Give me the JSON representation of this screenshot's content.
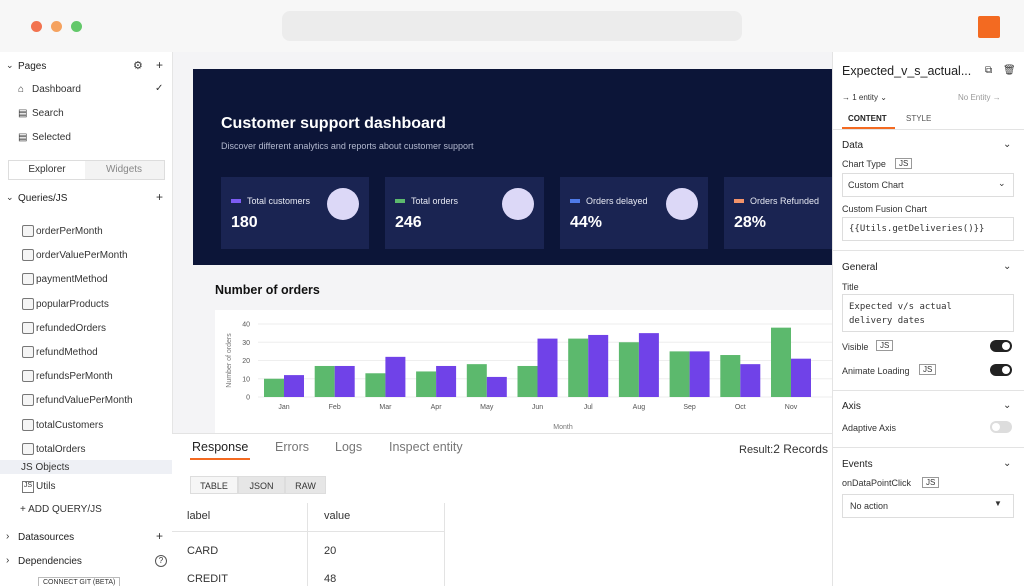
{
  "sidebar": {
    "pages_title": "Pages",
    "pages": [
      "Dashboard",
      "Search",
      "Selected"
    ],
    "tabs": [
      "Explorer",
      "Widgets"
    ],
    "queries_title": "Queries/JS",
    "queries": [
      "orderPerMonth",
      "orderValuePerMonth",
      "paymentMethod",
      "popularProducts",
      "refundedOrders",
      "refundMethod",
      "refundsPerMonth",
      "refundValuePerMonth",
      "totalCustomers",
      "totalOrders"
    ],
    "js_objects_title": "JS Objects",
    "js_objects": [
      "Utils"
    ],
    "add_query": "ADD QUERY/JS",
    "datasources": "Datasources",
    "dependencies": "Dependencies",
    "connect_git": "CONNECT GIT (BETA)"
  },
  "dashboard": {
    "title": "Customer support dashboard",
    "subtitle": "Discover different analytics and reports about customer support",
    "stats": [
      {
        "label": "Total customers",
        "value": "180"
      },
      {
        "label": "Total orders",
        "value": "246"
      },
      {
        "label": "Orders delayed",
        "value": "44%"
      },
      {
        "label": "Orders Refunded",
        "value": "28%"
      }
    ]
  },
  "chart_data": {
    "type": "bar",
    "title": "Number of orders",
    "y_label": "Number of orders",
    "x_label": "Month",
    "categories": [
      "Jan",
      "Feb",
      "Mar",
      "Apr",
      "May",
      "Jun",
      "Jul",
      "Aug",
      "Sep",
      "Oct",
      "Nov"
    ],
    "series": [
      {
        "color": "#5cb96d",
        "values": [
          10,
          17,
          13,
          14,
          18,
          17,
          32,
          30,
          25,
          23,
          38
        ]
      },
      {
        "color": "#7042e8",
        "values": [
          12,
          17,
          22,
          17,
          11,
          32,
          34,
          35,
          25,
          18,
          21
        ]
      }
    ],
    "ylim": [
      0,
      40
    ],
    "yticks": [
      0,
      10,
      20,
      30,
      40
    ],
    "grid": true
  },
  "response_panel": {
    "tabs": [
      "Response",
      "Errors",
      "Logs",
      "Inspect entity"
    ],
    "result_label": "Result:",
    "result_value": "2 Records",
    "view_tabs": [
      "TABLE",
      "JSON",
      "RAW"
    ],
    "table": {
      "headers": [
        "label",
        "value"
      ],
      "rows": [
        [
          "CARD",
          "20"
        ],
        [
          "CREDIT",
          "48"
        ]
      ]
    }
  },
  "property_pane": {
    "widget_name": "Expected_v_s_actual...",
    "entity": "1 entity",
    "no_entity": "No Entity",
    "tabs": [
      "CONTENT",
      "STYLE"
    ],
    "js": "JS",
    "data_section": "Data",
    "chart_type_label": "Chart Type",
    "chart_type_value": "Custom Chart",
    "fusion_label": "Custom Fusion Chart",
    "fusion_value": "{{Utils.getDeliveries()}}",
    "general_section": "General",
    "title_label": "Title",
    "title_value": "Expected v/s actual delivery dates",
    "visible_label": "Visible",
    "animate_label": "Animate Loading",
    "axis_section": "Axis",
    "adaptive_label": "Adaptive Axis",
    "events_section": "Events",
    "click_label": "onDataPointClick",
    "click_value": "No action"
  }
}
